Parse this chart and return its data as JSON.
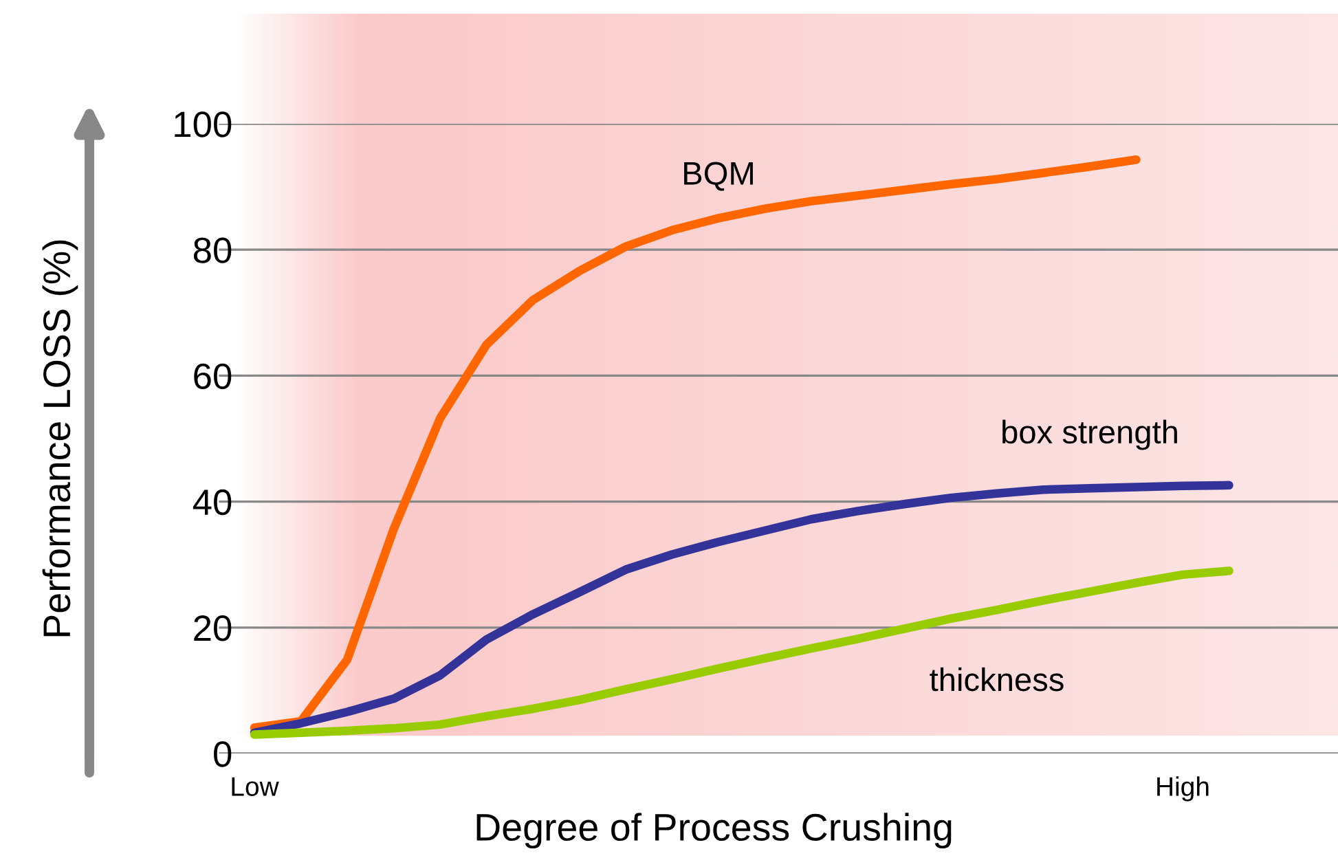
{
  "chart_data": {
    "type": "line",
    "xlabel": "Degree of Process Crushing",
    "ylabel": "Performance LOSS (%)",
    "categories": [
      "Low",
      null,
      null,
      null,
      null,
      null,
      null,
      null,
      null,
      null,
      null,
      null,
      null,
      null,
      null,
      null,
      null,
      null,
      null,
      null,
      "High",
      null
    ],
    "ylim": [
      0,
      100
    ],
    "yticks": [
      0,
      20,
      40,
      60,
      80,
      100
    ],
    "grid": "y",
    "legend": false,
    "marker": "none",
    "line_style": "solid",
    "series": [
      {
        "name": "BQM",
        "color": "#ff6600",
        "values": [
          4.1,
          5.1,
          14.9,
          35.6,
          53.2,
          64.9,
          72.0,
          76.6,
          80.5,
          83.1,
          85.0,
          86.5,
          87.7,
          88.6,
          89.5,
          90.4,
          91.2,
          92.2,
          93.2,
          94.3,
          null,
          null
        ]
      },
      {
        "name": "box strength",
        "color": "#333399",
        "values": [
          3.3,
          4.8,
          6.6,
          8.7,
          12.4,
          18.1,
          22.1,
          25.6,
          29.2,
          31.6,
          33.6,
          35.4,
          37.2,
          38.5,
          39.6,
          40.6,
          41.3,
          41.9,
          42.1,
          42.3,
          42.5,
          42.6
        ]
      },
      {
        "name": "thickness",
        "color": "#99cc00",
        "values": [
          3.0,
          3.3,
          3.6,
          4.0,
          4.6,
          5.9,
          7.1,
          8.5,
          10.2,
          11.8,
          13.5,
          15.1,
          16.7,
          18.2,
          19.8,
          21.4,
          22.8,
          24.3,
          25.7,
          27.1,
          28.4,
          29.0
        ]
      }
    ]
  }
}
